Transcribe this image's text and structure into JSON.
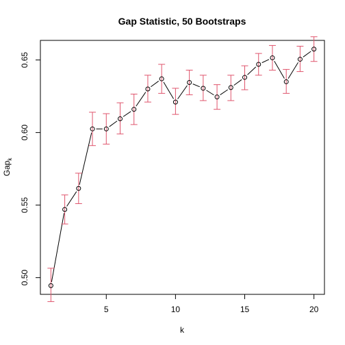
{
  "chart_data": {
    "type": "line",
    "title": "Gap Statistic, 50 Bootstraps",
    "xlabel": "k",
    "ylabel": {
      "main": "Gap",
      "sub": "k"
    },
    "xlim": [
      0.24,
      20.76
    ],
    "ylim": [
      0.4885,
      0.6635
    ],
    "xticks": [
      5,
      10,
      15,
      20
    ],
    "xtick_labels": [
      "5",
      "10",
      "15",
      "20"
    ],
    "yticks": [
      0.5,
      0.55,
      0.6,
      0.65
    ],
    "ytick_labels": [
      "0.50",
      "0.55",
      "0.60",
      "0.65"
    ],
    "grid": false,
    "series": [
      {
        "x": [
          1,
          2,
          3,
          4,
          5,
          6,
          7,
          8,
          9,
          10,
          11,
          12,
          13,
          14,
          15,
          16,
          17,
          18,
          19,
          20
        ],
        "values": [
          0.4945,
          0.547,
          0.5615,
          0.6025,
          0.6025,
          0.6095,
          0.616,
          0.63,
          0.637,
          0.621,
          0.6345,
          0.6305,
          0.6245,
          0.631,
          0.638,
          0.647,
          0.6515,
          0.635,
          0.6505,
          0.6575
        ],
        "err_low": [
          0.4835,
          0.537,
          0.551,
          0.591,
          0.592,
          0.599,
          0.6055,
          0.621,
          0.627,
          0.6125,
          0.626,
          0.622,
          0.616,
          0.622,
          0.6295,
          0.6395,
          0.643,
          0.627,
          0.642,
          0.649
        ],
        "err_high": [
          0.5065,
          0.557,
          0.572,
          0.614,
          0.613,
          0.6205,
          0.6265,
          0.6395,
          0.647,
          0.6305,
          0.643,
          0.6395,
          0.633,
          0.6395,
          0.646,
          0.6545,
          0.66,
          0.6435,
          0.6595,
          0.666
        ]
      }
    ],
    "colors": {
      "line": "#000000",
      "errorbar": "#DF536B",
      "point": "#000000"
    }
  }
}
